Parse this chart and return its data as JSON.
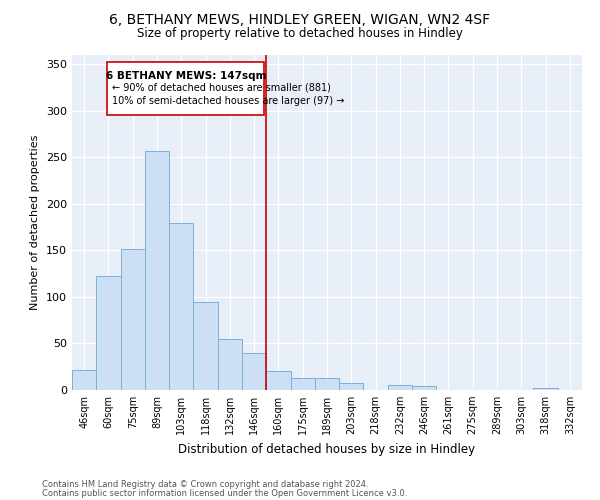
{
  "title1": "6, BETHANY MEWS, HINDLEY GREEN, WIGAN, WN2 4SF",
  "title2": "Size of property relative to detached houses in Hindley",
  "xlabel": "Distribution of detached houses by size in Hindley",
  "ylabel": "Number of detached properties",
  "categories": [
    "46sqm",
    "60sqm",
    "75sqm",
    "89sqm",
    "103sqm",
    "118sqm",
    "132sqm",
    "146sqm",
    "160sqm",
    "175sqm",
    "189sqm",
    "203sqm",
    "218sqm",
    "232sqm",
    "246sqm",
    "261sqm",
    "275sqm",
    "289sqm",
    "303sqm",
    "318sqm",
    "332sqm"
  ],
  "values": [
    22,
    123,
    152,
    257,
    180,
    95,
    55,
    40,
    20,
    13,
    13,
    7,
    0,
    5,
    4,
    0,
    0,
    0,
    0,
    2,
    0
  ],
  "bar_color": "#ccdff5",
  "bar_edge_color": "#7ab0d8",
  "marker_line_color": "#cc0000",
  "marker_box_color": "#cc0000",
  "annotation_line1": "6 BETHANY MEWS: 147sqm",
  "annotation_line2": "← 90% of detached houses are smaller (881)",
  "annotation_line3": "10% of semi-detached houses are larger (97) →",
  "footer1": "Contains HM Land Registry data © Crown copyright and database right 2024.",
  "footer2": "Contains public sector information licensed under the Open Government Licence v3.0.",
  "bg_color": "#e8eef8",
  "ylim": [
    0,
    360
  ],
  "yticks": [
    0,
    50,
    100,
    150,
    200,
    250,
    300,
    350
  ],
  "marker_bar_index": 7
}
